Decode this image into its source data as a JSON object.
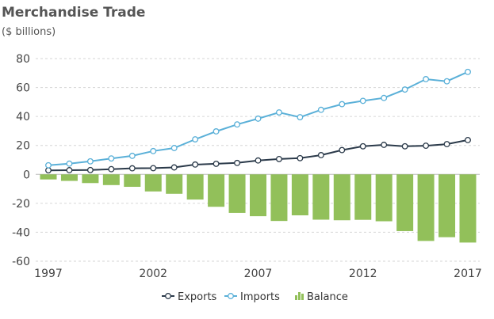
{
  "chart_data": {
    "type": "bar+line",
    "title": "Merchandise Trade",
    "subtitle": "($ billions)",
    "x": [
      1997,
      1998,
      1999,
      2000,
      2001,
      2002,
      2003,
      2004,
      2005,
      2006,
      2007,
      2008,
      2009,
      2010,
      2011,
      2012,
      2013,
      2014,
      2015,
      2016,
      2017
    ],
    "x_tick_labels": [
      "1997",
      "2002",
      "2007",
      "2012",
      "2017"
    ],
    "y_tick_labels": [
      "80",
      "60",
      "40",
      "20",
      "0",
      "-20",
      "-40",
      "-60"
    ],
    "ylim": [
      -60,
      80
    ],
    "grid": "horizontal dashed",
    "legend_placement": "bottom-center",
    "series": [
      {
        "name": "Exports",
        "kind": "line",
        "color": "#2b3a4a",
        "values": [
          2.8,
          2.9,
          3.0,
          3.6,
          4.2,
          4.3,
          4.8,
          6.8,
          7.3,
          7.9,
          9.6,
          10.6,
          11.2,
          13.3,
          16.8,
          19.4,
          20.4,
          19.4,
          19.8,
          20.9,
          23.7
        ]
      },
      {
        "name": "Imports",
        "kind": "line",
        "color": "#5ab0d8",
        "values": [
          6.3,
          7.4,
          9.0,
          11.0,
          12.8,
          16.1,
          18.2,
          24.2,
          29.7,
          34.5,
          38.5,
          42.8,
          39.5,
          44.6,
          48.5,
          50.8,
          52.8,
          58.6,
          65.8,
          64.3,
          70.8
        ]
      },
      {
        "name": "Balance",
        "kind": "bar",
        "color": "#92c05a",
        "values": [
          -3.5,
          -4.5,
          -6.0,
          -7.4,
          -8.6,
          -11.8,
          -13.4,
          -17.4,
          -22.4,
          -26.6,
          -28.9,
          -32.2,
          -28.3,
          -31.3,
          -31.7,
          -31.4,
          -32.4,
          -39.2,
          -46.0,
          -43.4,
          -47.1
        ]
      }
    ]
  }
}
